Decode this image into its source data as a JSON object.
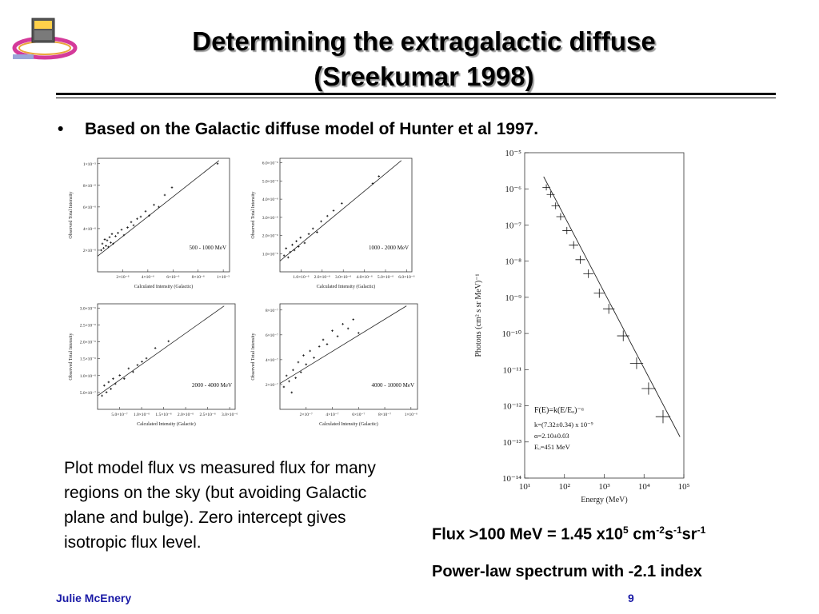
{
  "slide": {
    "title_line1": "Determining the extragalactic diffuse",
    "title_line2": "(Sreekumar 1998)",
    "bullet": "Based on the Galactic diffuse model of Hunter et al 1997.",
    "description": "Plot model flux vs measured flux for many regions on the sky (but avoiding Galactic plane and bulge). Zero intercept gives isotropic flux level.",
    "flux_text": "Flux >100 MeV = 1.45 x10",
    "flux_exp1": "5",
    "flux_unit1": " cm",
    "flux_exp2": "-2",
    "flux_unit2": "s",
    "flux_exp3": "-1",
    "flux_unit3": "sr",
    "flux_exp4": "-1",
    "powerlaw_text": "Power-law spectrum with -2.1 index",
    "footer_author": "Julie McEnery",
    "page_number": "9"
  },
  "colors": {
    "footer": "#1a1aa6",
    "title_shadow": "#9a9a9a"
  },
  "chart_data": [
    {
      "type": "scatter",
      "label": "500 - 1000 MeV",
      "xlabel": "Calculated Intensity (Galactic)",
      "ylabel": "Observed Total Intensity",
      "xticks": [
        "2×10⁻⁶",
        "4×10⁻⁶",
        "6×10⁻⁶",
        "8×10⁻⁶",
        "1×10⁻⁵"
      ],
      "yticks": [
        "2×10⁻⁶",
        "4×10⁻⁶",
        "6×10⁻⁶",
        "8×10⁻⁶",
        "1×10⁻⁵"
      ],
      "xlim": [
        0,
        1.1e-05
      ],
      "ylim": [
        0,
        1.05e-05
      ],
      "fit": {
        "intercept": 1.45e-06,
        "slope": 0.94
      },
      "points": [
        [
          3e-07,
          2e-06
        ],
        [
          4e-07,
          2.6e-06
        ],
        [
          5e-07,
          2.2e-06
        ],
        [
          6e-07,
          3e-06
        ],
        [
          7e-07,
          2.4e-06
        ],
        [
          8e-07,
          2.9e-06
        ],
        [
          9e-07,
          2.3e-06
        ],
        [
          1e-06,
          3.2e-06
        ],
        [
          1.1e-06,
          2.7e-06
        ],
        [
          1.2e-06,
          3.5e-06
        ],
        [
          1.3e-06,
          2.6e-06
        ],
        [
          1.5e-06,
          3.3e-06
        ],
        [
          1.7e-06,
          3.6e-06
        ],
        [
          2e-06,
          3.9e-06
        ],
        [
          2.2e-06,
          3.4e-06
        ],
        [
          2.5e-06,
          4.1e-06
        ],
        [
          2.8e-06,
          4.6e-06
        ],
        [
          3e-06,
          4.3e-06
        ],
        [
          3.3e-06,
          4.9e-06
        ],
        [
          3.6e-06,
          5.1e-06
        ],
        [
          4e-06,
          5.6e-06
        ],
        [
          4.3e-06,
          5.2e-06
        ],
        [
          4.7e-06,
          6.2e-06
        ],
        [
          5.1e-06,
          6e-06
        ],
        [
          5.6e-06,
          7.1e-06
        ],
        [
          6.2e-06,
          7.8e-06
        ],
        [
          1e-05,
          1e-05
        ]
      ]
    },
    {
      "type": "scatter",
      "label": "1000 - 2000 MeV",
      "xlabel": "Calculated Intensity (Galactic)",
      "ylabel": "Observed Total Intensity",
      "xticks": [
        "1.0×10⁻⁶",
        "2.0×10⁻⁶",
        "3.0×10⁻⁶",
        "4.0×10⁻⁶",
        "5.0×10⁻⁶",
        "6.0×10⁻⁶"
      ],
      "yticks": [
        "1.0×10⁻⁶",
        "2.0×10⁻⁶",
        "3.0×10⁻⁶",
        "4.0×10⁻⁶",
        "5.0×10⁻⁶",
        "6.0×10⁻⁶"
      ],
      "xlim": [
        0,
        6.4e-06
      ],
      "ylim": [
        0,
        6.3e-06
      ],
      "fit": {
        "intercept": 6e-07,
        "slope": 0.98
      },
      "points": [
        [
          2e-07,
          9e-07
        ],
        [
          3e-07,
          1.3e-06
        ],
        [
          4e-07,
          8e-07
        ],
        [
          5e-07,
          1.1e-06
        ],
        [
          6e-07,
          1.5e-06
        ],
        [
          7e-07,
          1.2e-06
        ],
        [
          8e-07,
          1.7e-06
        ],
        [
          9e-07,
          1.4e-06
        ],
        [
          1e-06,
          1.9e-06
        ],
        [
          1.2e-06,
          1.6e-06
        ],
        [
          1.4e-06,
          2.1e-06
        ],
        [
          1.6e-06,
          2.4e-06
        ],
        [
          1.8e-06,
          2.2e-06
        ],
        [
          2e-06,
          2.8e-06
        ],
        [
          2.3e-06,
          3.1e-06
        ],
        [
          2.6e-06,
          3.4e-06
        ],
        [
          3e-06,
          3.8e-06
        ],
        [
          4.5e-06,
          4.9e-06
        ],
        [
          4.8e-06,
          5.3e-06
        ]
      ]
    },
    {
      "type": "scatter",
      "label": "2000 - 4000 MeV",
      "xlabel": "Calculated Intensity (Galactic)",
      "ylabel": "Observed Total Intensity",
      "xticks": [
        "5.0×10⁻⁷",
        "1.0×10⁻⁶",
        "1.5×10⁻⁶",
        "2.0×10⁻⁶",
        "2.5×10⁻⁶",
        "3.0×10⁻⁶"
      ],
      "yticks": [
        "5.0×10⁻⁷",
        "1.0×10⁻⁶",
        "1.5×10⁻⁶",
        "2.0×10⁻⁶",
        "2.5×10⁻⁶",
        "3.0×10⁻⁶"
      ],
      "xlim": [
        0,
        3.1e-06
      ],
      "ylim": [
        0,
        3.1e-06
      ],
      "fit": {
        "intercept": 4e-07,
        "slope": 1.0
      },
      "points": [
        [
          1e-07,
          4e-07
        ],
        [
          1.5e-07,
          7e-07
        ],
        [
          2e-07,
          5e-07
        ],
        [
          2.5e-07,
          8e-07
        ],
        [
          3e-07,
          6e-07
        ],
        [
          3.5e-07,
          9e-07
        ],
        [
          4e-07,
          7.5e-07
        ],
        [
          5e-07,
          1e-06
        ],
        [
          6e-07,
          9e-07
        ],
        [
          7e-07,
          1.2e-06
        ],
        [
          8e-07,
          1.1e-06
        ],
        [
          9e-07,
          1.3e-06
        ],
        [
          1e-06,
          1.4e-06
        ],
        [
          1.1e-06,
          1.5e-06
        ],
        [
          1.3e-06,
          1.8e-06
        ],
        [
          1.6e-06,
          2e-06
        ]
      ]
    },
    {
      "type": "scatter",
      "label": "4000 - 10000 MeV",
      "xlabel": "Calculated Intensity (Galactic)",
      "ylabel": "Observed Total Intensity",
      "xticks": [
        "2×10⁻⁷",
        "4×10⁻⁷",
        "6×10⁻⁷",
        "8×10⁻⁷",
        "1×10⁻⁶"
      ],
      "yticks": [
        "2×10⁻⁷",
        "4×10⁻⁷",
        "6×10⁻⁷",
        "8×10⁻⁷"
      ],
      "xlim": [
        0,
        1.05e-06
      ],
      "ylim": [
        0,
        9.4e-07
      ],
      "fit": {
        "intercept": 2.3e-07,
        "slope": 1.25
      },
      "points": [
        [
          3e-08,
          2e-07
        ],
        [
          5e-08,
          3e-07
        ],
        [
          7e-08,
          2.5e-07
        ],
        [
          9e-08,
          1.5e-07
        ],
        [
          1e-07,
          3.5e-07
        ],
        [
          1.2e-07,
          2.8e-07
        ],
        [
          1.4e-07,
          4.2e-07
        ],
        [
          1.6e-07,
          3.3e-07
        ],
        [
          1.8e-07,
          4.8e-07
        ],
        [
          2e-07,
          4e-07
        ],
        [
          2.3e-07,
          5.2e-07
        ],
        [
          2.6e-07,
          4.6e-07
        ],
        [
          3e-07,
          5.6e-07
        ],
        [
          3.3e-07,
          6.2e-07
        ],
        [
          3.6e-07,
          5.8e-07
        ],
        [
          4e-07,
          7e-07
        ],
        [
          4.4e-07,
          6.5e-07
        ],
        [
          4.8e-07,
          7.6e-07
        ],
        [
          5.2e-07,
          7.2e-07
        ],
        [
          5.6e-07,
          8e-07
        ],
        [
          6e-07,
          6.8e-07
        ]
      ]
    },
    {
      "type": "line",
      "xlabel": "Energy (MeV)",
      "ylabel": "Photons (cm² s sr MeV)⁻¹",
      "log_x": true,
      "log_y": true,
      "xlim": [
        10,
        100000
      ],
      "ylim": [
        1e-14,
        1e-05
      ],
      "xtick_labels": [
        "10¹",
        "10²",
        "10³",
        "10⁴",
        "10⁵"
      ],
      "ytick_labels": [
        "10⁻¹⁴",
        "10⁻¹³",
        "10⁻¹²",
        "10⁻¹¹",
        "10⁻¹⁰",
        "10⁻⁹",
        "10⁻⁸",
        "10⁻⁷",
        "10⁻⁶",
        "10⁻⁵"
      ],
      "annotations": [
        "F(E)=k(E/Eₒ)⁻ᵅ",
        "k=(7.32±0.34) x 10⁻⁹",
        "α=2.10±0.03",
        "Eₒ=451 MeV"
      ],
      "fit": {
        "k": 7.32e-09,
        "alpha": 2.1,
        "E0": 451
      },
      "points": [
        [
          35,
          1.1e-06
        ],
        [
          45,
          7e-07
        ],
        [
          60,
          3.4e-07
        ],
        [
          80,
          1.7e-07
        ],
        [
          115,
          7e-08
        ],
        [
          170,
          2.8e-08
        ],
        [
          250,
          1.1e-08
        ],
        [
          400,
          4.5e-09
        ],
        [
          750,
          1.3e-09
        ],
        [
          1300,
          4.8e-10
        ],
        [
          3000,
          8.6e-11
        ],
        [
          6500,
          1.5e-11
        ],
        [
          13000,
          3e-12
        ],
        [
          30000,
          5e-13
        ]
      ]
    }
  ]
}
